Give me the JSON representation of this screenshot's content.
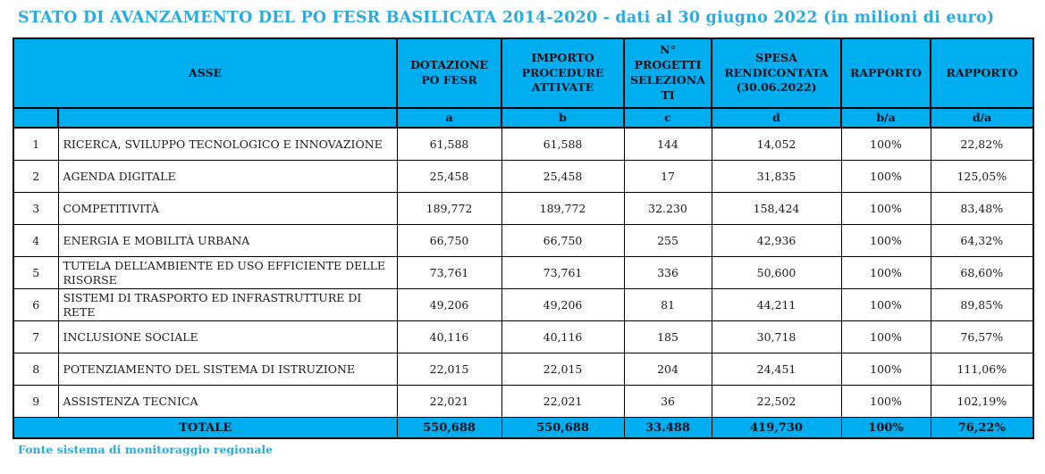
{
  "title": "STATO DI AVANZAMENTO DEL PO FESR BASILICATA 2014-2020 - dati al 30 giugno 2022 (in milioni di euro)",
  "source_note": "Fonte sistema di monitoraggio regionale",
  "colors": {
    "accent": "#29ABE2",
    "header_bg": "#00AEEF",
    "header_text": "#10101A",
    "body_text": "#1A1A1A",
    "border": "#000000"
  },
  "table": {
    "headers": {
      "asse": "ASSE",
      "dotazione": "DOTAZIONE PO FESR",
      "importo": "IMPORTO PROCEDURE ATTIVATE",
      "progetti": "N° PROGETTI SELEZIONATI",
      "spesa": "SPESA RENDICONTATA (30.06.2022)",
      "rapporto_ba": "RAPPORTO",
      "rapporto_da": "RAPPORTO"
    },
    "subheaders": [
      "",
      "",
      "a",
      "b",
      "c",
      "d",
      "b/a",
      "d/a"
    ],
    "rows": [
      {
        "num": "1",
        "asse": "RICERCA, SVILUPPO TECNOLOGICO E INNOVAZIONE",
        "a": "61,588",
        "b": "61,588",
        "c": "144",
        "d": "14,052",
        "ba": "100%",
        "da": "22,82%"
      },
      {
        "num": "2",
        "asse": "AGENDA DIGITALE",
        "a": "25,458",
        "b": "25,458",
        "c": "17",
        "d": "31,835",
        "ba": "100%",
        "da": "125,05%"
      },
      {
        "num": "3",
        "asse": "COMPETITIVITÀ",
        "a": "189,772",
        "b": "189,772",
        "c": "32.230",
        "d": "158,424",
        "ba": "100%",
        "da": "83,48%"
      },
      {
        "num": "4",
        "asse": "ENERGIA E MOBILITÀ URBANA",
        "a": "66,750",
        "b": "66,750",
        "c": "255",
        "d": "42,936",
        "ba": "100%",
        "da": "64,32%"
      },
      {
        "num": "5",
        "asse": "TUTELA DELL’AMBIENTE ED USO EFFICIENTE DELLE RISORSE",
        "a": "73,761",
        "b": "73,761",
        "c": "336",
        "d": "50,600",
        "ba": "100%",
        "da": "68,60%"
      },
      {
        "num": "6",
        "asse": "SISTEMI DI TRASPORTO ED INFRASTRUTTURE DI RETE",
        "a": "49,206",
        "b": "49,206",
        "c": "81",
        "d": "44,211",
        "ba": "100%",
        "da": "89,85%"
      },
      {
        "num": "7",
        "asse": "INCLUSIONE SOCIALE",
        "a": "40,116",
        "b": "40,116",
        "c": "185",
        "d": "30,718",
        "ba": "100%",
        "da": "76,57%"
      },
      {
        "num": "8",
        "asse": "POTENZIAMENTO DEL SISTEMA DI ISTRUZIONE",
        "a": "22,015",
        "b": "22,015",
        "c": "204",
        "d": "24,451",
        "ba": "100%",
        "da": "111,06%"
      },
      {
        "num": "9",
        "asse": "ASSISTENZA TECNICA",
        "a": "22,021",
        "b": "22,021",
        "c": "36",
        "d": "22,502",
        "ba": "100%",
        "da": "102,19%"
      }
    ],
    "total": {
      "label": "TOTALE",
      "a": "550,688",
      "b": "550,688",
      "c": "33.488",
      "d": "419,730",
      "ba": "100%",
      "da": "76,22%"
    }
  }
}
